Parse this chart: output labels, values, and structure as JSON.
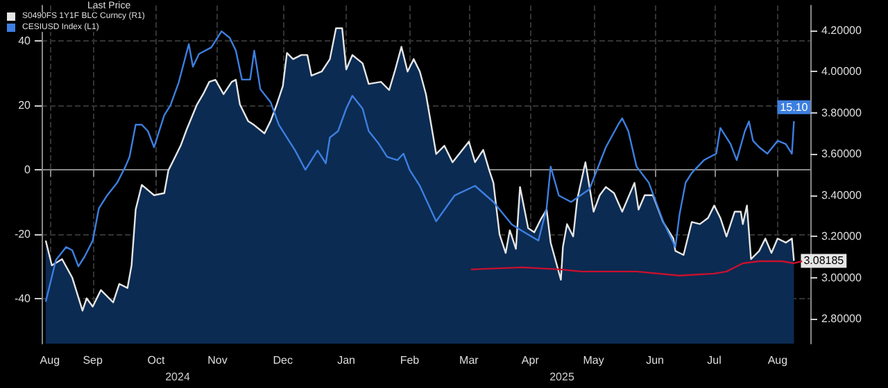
{
  "chart_data": {
    "type": "line",
    "legend_title": "Last Price",
    "legend": "top left",
    "grid": true,
    "marker": "none",
    "line_style": "solid",
    "xlim": [
      "2024-08-21",
      "2025-09-01"
    ],
    "xticks": [
      {
        "value": "2024-08-25",
        "label": "Aug"
      },
      {
        "value": "2024-09-15",
        "label": "Sep"
      },
      {
        "value": "2024-10-16",
        "label": "Oct"
      },
      {
        "value": "2024-11-15",
        "label": "Nov"
      },
      {
        "value": "2024-12-17",
        "label": "Dec"
      },
      {
        "value": "2025-01-17",
        "label": "Jan"
      },
      {
        "value": "2025-02-17",
        "label": "Feb"
      },
      {
        "value": "2025-03-18",
        "label": "Mar"
      },
      {
        "value": "2025-04-17",
        "label": "Apr"
      },
      {
        "value": "2025-05-18",
        "label": "May"
      },
      {
        "value": "2025-06-17",
        "label": "Jun"
      },
      {
        "value": "2025-07-16",
        "label": "Jul"
      },
      {
        "value": "2025-08-16",
        "label": "Aug"
      }
    ],
    "ylim": [
      -54,
      51
    ],
    "yticks": [
      -40,
      -20,
      0,
      20,
      40
    ],
    "y2lim": [
      2.68,
      4.32
    ],
    "y2ticks": [
      {
        "value": 2.8,
        "label": "2.80000"
      },
      {
        "value": 3.0,
        "label": "3.00000"
      },
      {
        "value": 3.2,
        "label": "3.20000"
      },
      {
        "value": 3.4,
        "label": "3.40000"
      },
      {
        "value": 3.6,
        "label": "3.60000"
      },
      {
        "value": 3.8,
        "label": "3.80000"
      },
      {
        "value": 4.0,
        "label": "4.00000"
      },
      {
        "value": 4.2,
        "label": "4.20000"
      }
    ],
    "annotations": [
      "2024",
      "2025"
    ],
    "series": [
      {
        "name": "S0490FS 1Y1F BLC Curncy (R1)",
        "type": "area",
        "axis": "y2",
        "color": "#e6e6e6",
        "x": [
          "2024-08-23",
          "2024-08-26",
          "2024-08-31",
          "2024-09-05",
          "2024-09-10",
          "2024-09-12",
          "2024-09-15",
          "2024-09-19",
          "2024-09-25",
          "2024-09-28",
          "2024-10-02",
          "2024-10-04",
          "2024-10-06",
          "2024-10-08",
          "2024-10-09",
          "2024-10-15",
          "2024-10-20",
          "2024-10-22",
          "2024-10-25",
          "2024-10-28",
          "2024-10-31",
          "2024-11-05",
          "2024-11-08",
          "2024-11-11",
          "2024-11-14",
          "2024-11-18",
          "2024-11-22",
          "2024-11-24",
          "2024-11-26",
          "2024-11-30",
          "2024-12-03",
          "2024-12-08",
          "2024-12-11",
          "2024-12-14",
          "2024-12-17",
          "2024-12-19",
          "2024-12-22",
          "2024-12-26",
          "2024-12-29",
          "2024-12-31",
          "2025-01-05",
          "2025-01-09",
          "2025-01-12",
          "2025-01-15",
          "2025-01-17",
          "2025-01-20",
          "2025-01-25",
          "2025-01-28",
          "2025-02-03",
          "2025-02-07",
          "2025-02-10",
          "2025-02-13",
          "2025-02-16",
          "2025-02-19",
          "2025-02-22",
          "2025-02-25",
          "2025-03-02",
          "2025-03-06",
          "2025-03-10",
          "2025-03-18",
          "2025-03-21",
          "2025-03-25",
          "2025-03-28",
          "2025-03-30",
          "2025-04-02",
          "2025-04-05",
          "2025-04-07",
          "2025-04-10",
          "2025-04-12",
          "2025-04-16",
          "2025-04-19",
          "2025-04-22",
          "2025-04-25",
          "2025-04-27",
          "2025-05-02",
          "2025-05-03",
          "2025-05-05",
          "2025-05-08",
          "2025-05-10",
          "2025-05-14",
          "2025-05-18",
          "2025-05-21",
          "2025-05-24",
          "2025-05-28",
          "2025-06-01",
          "2025-06-07",
          "2025-06-09",
          "2025-06-12",
          "2025-06-16",
          "2025-06-21",
          "2025-06-26",
          "2025-06-27",
          "2025-07-01",
          "2025-07-05",
          "2025-07-09",
          "2025-07-13",
          "2025-07-16",
          "2025-07-19",
          "2025-07-22",
          "2025-07-26",
          "2025-07-29",
          "2025-07-30",
          "2025-08-01",
          "2025-08-03",
          "2025-08-07",
          "2025-08-10",
          "2025-08-13",
          "2025-08-16",
          "2025-08-20",
          "2025-08-23",
          "2025-08-24"
        ],
        "values": [
          3.18,
          3.06,
          3.09,
          3.0,
          2.84,
          2.9,
          2.86,
          2.94,
          2.88,
          2.97,
          2.95,
          3.06,
          3.33,
          3.41,
          3.45,
          3.4,
          3.41,
          3.52,
          3.58,
          3.64,
          3.72,
          3.84,
          3.89,
          3.95,
          3.96,
          3.89,
          3.95,
          3.96,
          3.84,
          3.76,
          3.74,
          3.7,
          3.76,
          3.84,
          3.93,
          4.09,
          4.06,
          4.08,
          4.08,
          3.98,
          4.0,
          4.06,
          4.21,
          4.21,
          4.01,
          4.08,
          4.04,
          3.94,
          3.95,
          3.91,
          4.01,
          4.12,
          4.0,
          4.06,
          4.0,
          3.89,
          3.6,
          3.64,
          3.56,
          3.66,
          3.56,
          3.62,
          3.52,
          3.46,
          3.21,
          3.12,
          3.23,
          3.14,
          3.44,
          3.24,
          3.22,
          3.28,
          3.33,
          3.17,
          2.99,
          3.15,
          3.26,
          3.2,
          3.38,
          3.56,
          3.32,
          3.4,
          3.44,
          3.41,
          3.32,
          3.46,
          3.33,
          3.4,
          3.4,
          3.27,
          3.19,
          3.13,
          3.11,
          3.27,
          3.26,
          3.29,
          3.35,
          3.29,
          3.2,
          3.32,
          3.32,
          3.26,
          3.35,
          3.09,
          3.13,
          3.19,
          3.12,
          3.19,
          3.17,
          3.19,
          3.08185
        ],
        "value_labels": [
          null,
          null,
          null,
          null,
          null,
          null,
          null,
          null,
          null,
          null,
          null,
          null,
          null,
          null,
          null,
          null,
          null,
          null,
          null,
          null,
          null,
          null,
          null,
          null,
          null,
          null,
          null,
          null,
          null,
          null,
          null,
          null,
          null,
          null,
          null,
          null,
          null,
          null,
          null,
          null,
          null,
          null,
          null,
          null,
          null,
          null,
          null,
          null,
          null,
          null,
          null,
          null,
          null,
          null,
          null,
          null,
          null,
          null,
          null,
          null,
          null,
          null,
          null,
          null,
          null,
          null,
          null,
          null,
          null,
          null,
          null,
          null,
          null,
          null,
          null,
          null,
          null,
          null,
          null,
          null,
          null,
          null,
          null,
          null,
          null,
          null,
          null,
          null,
          null,
          null,
          null,
          null,
          null,
          null,
          null,
          null,
          null,
          null,
          null,
          null,
          null,
          null,
          null,
          null,
          null,
          null,
          null,
          null,
          null,
          null,
          "3.08185"
        ]
      },
      {
        "name": "CESIUSD Index (L1)",
        "type": "line",
        "axis": "y",
        "color": "#3d7fe0",
        "x": [
          "2024-08-23",
          "2024-08-28",
          "2024-09-02",
          "2024-09-05",
          "2024-09-08",
          "2024-09-11",
          "2024-09-15",
          "2024-09-18",
          "2024-09-22",
          "2024-09-27",
          "2024-10-01",
          "2024-10-03",
          "2024-10-06",
          "2024-10-09",
          "2024-10-12",
          "2024-10-15",
          "2024-10-20",
          "2024-10-23",
          "2024-10-27",
          "2024-11-01",
          "2024-11-03",
          "2024-11-06",
          "2024-11-12",
          "2024-11-17",
          "2024-11-21",
          "2024-11-24",
          "2024-11-27",
          "2024-12-01",
          "2024-12-03",
          "2024-12-06",
          "2024-12-11",
          "2024-12-15",
          "2024-12-19",
          "2024-12-23",
          "2024-12-28",
          "2024-12-31",
          "2025-01-03",
          "2025-01-07",
          "2025-01-09",
          "2025-01-13",
          "2025-01-17",
          "2025-01-20",
          "2025-01-25",
          "2025-01-28",
          "2025-02-02",
          "2025-02-06",
          "2025-02-11",
          "2025-02-14",
          "2025-02-17",
          "2025-02-22",
          "2025-03-02",
          "2025-03-11",
          "2025-03-21",
          "2025-03-30",
          "2025-04-08",
          "2025-04-13",
          "2025-04-21",
          "2025-04-25",
          "2025-04-27",
          "2025-05-01",
          "2025-05-07",
          "2025-05-16",
          "2025-05-24",
          "2025-05-30",
          "2025-06-01",
          "2025-06-04",
          "2025-06-08",
          "2025-06-14",
          "2025-06-21",
          "2025-06-27",
          "2025-06-29",
          "2025-07-02",
          "2025-07-05",
          "2025-07-11",
          "2025-07-17",
          "2025-07-19",
          "2025-07-24",
          "2025-07-27",
          "2025-07-31",
          "2025-08-02",
          "2025-08-04",
          "2025-08-07",
          "2025-08-11",
          "2025-08-16",
          "2025-08-20",
          "2025-08-23",
          "2025-08-24"
        ],
        "values": [
          -41,
          -28,
          -24,
          -25,
          -30,
          -27,
          -22,
          -12,
          -8,
          -4,
          1,
          4,
          14,
          14,
          12,
          7,
          17,
          20,
          27,
          39,
          32,
          36,
          38,
          43,
          41,
          37,
          28,
          28,
          37,
          25,
          21,
          14,
          10,
          6,
          0,
          3,
          6,
          2,
          10,
          12,
          19,
          23,
          19,
          12,
          8,
          4,
          3,
          5,
          0,
          -5,
          -16,
          -8,
          -5,
          -10,
          -17,
          -19,
          -22,
          -12,
          1,
          -8,
          -10,
          -6,
          7,
          14,
          16,
          12,
          1,
          -4,
          -16,
          -24,
          -14,
          -4,
          -1,
          3,
          5,
          13,
          8,
          3,
          12,
          15,
          9,
          7,
          5,
          9,
          8,
          5,
          15.1
        ],
        "value_labels": [
          null,
          null,
          null,
          null,
          null,
          null,
          null,
          null,
          null,
          null,
          null,
          null,
          null,
          null,
          null,
          null,
          null,
          null,
          null,
          null,
          null,
          null,
          null,
          null,
          null,
          null,
          null,
          null,
          null,
          null,
          null,
          null,
          null,
          null,
          null,
          null,
          null,
          null,
          null,
          null,
          null,
          null,
          null,
          null,
          null,
          null,
          null,
          null,
          null,
          null,
          null,
          null,
          null,
          null,
          null,
          null,
          null,
          null,
          null,
          null,
          null,
          null,
          null,
          null,
          null,
          null,
          null,
          null,
          null,
          null,
          null,
          null,
          null,
          null,
          null,
          null,
          null,
          null,
          null,
          null,
          null,
          null,
          null,
          null,
          null,
          null,
          "15.10"
        ]
      },
      {
        "axis": "y2",
        "color": "#c8102e",
        "x": [
          "2025-03-19",
          "2025-04-13",
          "2025-05-02",
          "2025-05-12",
          "2025-06-08",
          "2025-06-29",
          "2025-07-16",
          "2025-07-22",
          "2025-07-30",
          "2025-08-07",
          "2025-08-18",
          "2025-08-24",
          "2025-08-28"
        ],
        "values": [
          3.04,
          3.05,
          3.04,
          3.03,
          3.03,
          3.01,
          3.02,
          3.03,
          3.07,
          3.08,
          3.08,
          3.07,
          3.08
        ]
      }
    ]
  }
}
